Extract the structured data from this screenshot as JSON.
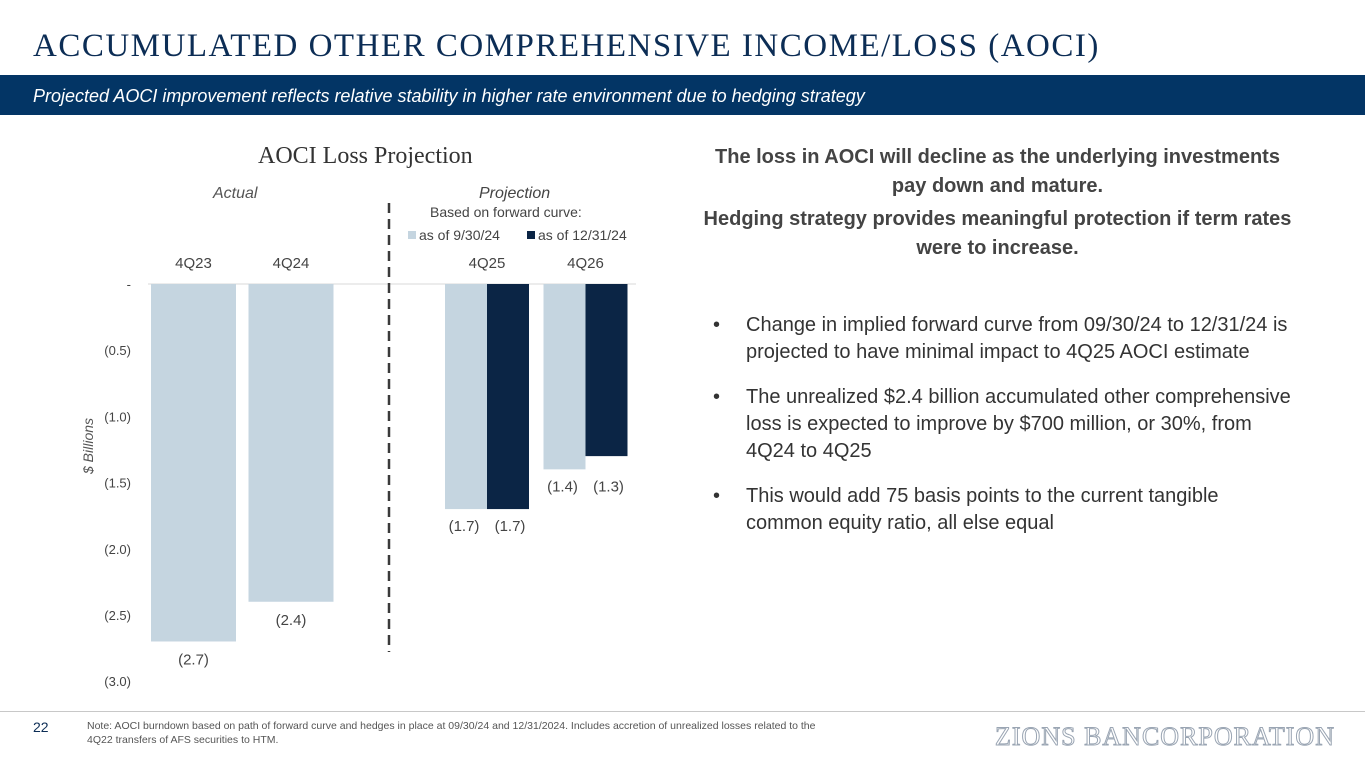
{
  "header": {
    "title": "ACCUMULATED OTHER COMPREHENSIVE INCOME/LOSS (AOCI)",
    "subtitle": "Projected AOCI improvement reflects relative stability in higher rate environment due to hedging strategy"
  },
  "chart_data": {
    "type": "bar",
    "title": "AOCI Loss Projection",
    "ylabel": "$ Billions",
    "section_labels": {
      "actual": "Actual",
      "projection": "Projection"
    },
    "legend_heading": "Based on forward curve:",
    "categories": [
      "4Q23",
      "4Q24",
      "4Q25",
      "4Q26"
    ],
    "series": [
      {
        "name": "as of 9/30/24",
        "color": "#c5d5e0",
        "values": [
          -2.7,
          -2.4,
          -1.7,
          -1.4
        ],
        "labels": [
          "(2.7)",
          "(2.4)",
          "(1.7)",
          "(1.4)"
        ]
      },
      {
        "name": "as of 12/31/24",
        "color": "#0b2545",
        "values": [
          null,
          null,
          -1.7,
          -1.3
        ],
        "labels": [
          "",
          "",
          "(1.7)",
          "(1.3)"
        ]
      }
    ],
    "y_ticks": [
      0,
      -0.5,
      -1.0,
      -1.5,
      -2.0,
      -2.5,
      -3.0
    ],
    "y_tick_labels": [
      "-",
      "(0.5)",
      "(1.0)",
      "(1.5)",
      "(2.0)",
      "(2.5)",
      "(3.0)"
    ],
    "ylim": [
      -3.0,
      0
    ],
    "divider_style": "dashed"
  },
  "commentary": {
    "headline1": "The loss in AOCI will decline as the underlying investments pay down and mature.",
    "headline2": "Hedging strategy provides meaningful protection if term rates were to increase.",
    "bullet_char": "•",
    "bullets": [
      "Change in implied forward curve from 09/30/24 to 12/31/24 is projected to have minimal impact to 4Q25 AOCI estimate",
      "The unrealized $2.4 billion accumulated other comprehensive loss is expected to improve by $700 million, or 30%, from 4Q24 to 4Q25",
      "This would add 75 basis points to the current tangible common equity ratio, all else equal"
    ]
  },
  "footer": {
    "page_number": "22",
    "note": "Note: AOCI burndown based on path of forward curve and hedges in place at 09/30/24 and 12/31/2024. Includes accretion of unrealized losses related to the 4Q22 transfers of AFS securities to HTM.",
    "logo": "ZIONS BANCORPORATION"
  }
}
